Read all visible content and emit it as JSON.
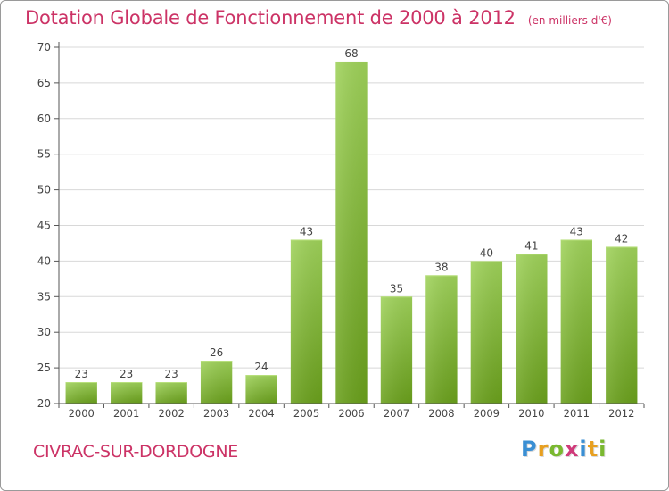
{
  "header": {
    "title": "Dotation Globale de Fonctionnement de 2000 à 2012",
    "subtitle": "(en milliers d'€)"
  },
  "footer": {
    "town": "CIVRAC-SUR-DORDOGNE",
    "logo": [
      "P",
      "r",
      "o",
      "x",
      "i",
      "t",
      "i"
    ],
    "logo_colors": [
      "#3a8fd4",
      "#e8a020",
      "#7ab830",
      "#d03a7a",
      "#3a8fd4",
      "#e8a020",
      "#7ab830"
    ]
  },
  "colors": {
    "bar_top": "#9fd25a",
    "bar_bottom": "#6aa01c",
    "grid": "#d8d8d8",
    "axis": "#555555",
    "text": "#444444"
  },
  "chart_data": {
    "type": "bar",
    "categories": [
      "2000",
      "2001",
      "2002",
      "2003",
      "2004",
      "2005",
      "2006",
      "2007",
      "2008",
      "2009",
      "2010",
      "2011",
      "2012"
    ],
    "values": [
      23,
      23,
      23,
      26,
      24,
      43,
      68,
      35,
      38,
      40,
      41,
      43,
      42
    ],
    "yticks": [
      20,
      25,
      30,
      35,
      40,
      45,
      50,
      55,
      60,
      65,
      70
    ],
    "ylim": [
      20,
      70
    ],
    "grid": true
  }
}
